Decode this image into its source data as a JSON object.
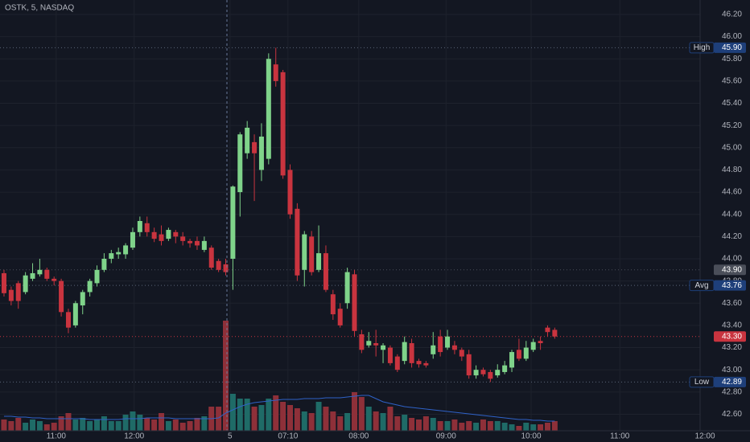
{
  "chart_data": {
    "type": "candlestick",
    "title": "OSTK, 5, NASDAQ",
    "x": [
      0,
      1,
      2,
      3,
      4,
      5,
      6,
      7,
      8,
      9,
      10,
      11,
      12,
      13,
      14,
      15,
      16,
      17,
      18,
      19,
      20,
      21,
      22,
      23,
      24,
      25,
      26,
      27,
      28,
      29,
      30,
      31,
      32,
      33,
      34,
      35,
      36,
      37,
      38,
      39,
      40,
      41,
      42,
      43,
      44,
      45,
      46,
      47,
      48,
      49,
      50,
      51,
      52,
      53,
      54,
      55,
      56,
      57,
      58,
      59,
      60,
      61,
      62,
      63,
      64,
      65,
      66,
      67,
      68,
      69,
      70,
      71,
      72,
      73,
      74,
      75,
      76,
      77
    ],
    "open": [
      43.87,
      43.72,
      43.78,
      43.7,
      43.82,
      43.86,
      43.9,
      43.82,
      43.8,
      43.52,
      43.4,
      43.58,
      43.7,
      43.78,
      43.9,
      44.0,
      44.04,
      44.04,
      44.1,
      44.24,
      44.32,
      44.24,
      44.22,
      44.18,
      44.24,
      44.2,
      44.16,
      44.16,
      44.08,
      44.1,
      43.98,
      43.95,
      44.0,
      44.6,
      44.95,
      45.05,
      44.8,
      44.9,
      45.75,
      45.68,
      44.8,
      44.45,
      43.9,
      44.2,
      43.9,
      44.05,
      43.68,
      43.55,
      43.6,
      43.86,
      43.32,
      43.22,
      43.24,
      43.18,
      43.2,
      43.12,
      43.08,
      43.24,
      43.08,
      43.06,
      43.14,
      43.3,
      43.2,
      43.22,
      43.18,
      43.14,
      42.95,
      43.0,
      42.98,
      42.95,
      42.98,
      43.02,
      43.18,
      43.1,
      43.18,
      43.26,
      43.38,
      43.36
    ],
    "high": [
      43.9,
      43.75,
      43.8,
      43.88,
      43.96,
      44.0,
      43.92,
      43.84,
      43.82,
      43.55,
      43.62,
      43.72,
      43.82,
      43.94,
      44.05,
      44.08,
      44.1,
      44.14,
      44.28,
      44.38,
      44.38,
      44.28,
      44.3,
      44.28,
      44.26,
      44.24,
      44.18,
      44.2,
      44.2,
      44.12,
      44.0,
      44.0,
      44.66,
      45.14,
      45.24,
      45.12,
      45.22,
      45.85,
      45.9,
      45.7,
      44.85,
      44.5,
      44.25,
      44.25,
      44.3,
      44.12,
      43.72,
      43.6,
      43.92,
      43.9,
      43.36,
      43.34,
      43.36,
      43.24,
      43.22,
      43.14,
      43.3,
      43.28,
      43.1,
      43.08,
      43.34,
      43.36,
      43.36,
      43.26,
      43.2,
      43.18,
      43.04,
      43.02,
      43.0,
      43.05,
      43.08,
      43.18,
      43.28,
      43.26,
      43.28,
      43.3,
      43.4,
      43.38
    ],
    "low": [
      43.66,
      43.58,
      43.55,
      43.68,
      43.8,
      43.84,
      43.8,
      43.76,
      43.48,
      43.33,
      43.38,
      43.5,
      43.66,
      43.75,
      43.88,
      43.96,
      44.0,
      44.0,
      44.08,
      44.2,
      44.2,
      44.15,
      44.12,
      44.16,
      44.14,
      44.12,
      44.1,
      44.08,
      44.06,
      43.9,
      43.88,
      43.85,
      43.72,
      44.38,
      44.9,
      44.52,
      44.7,
      44.85,
      45.55,
      44.72,
      44.36,
      43.8,
      43.75,
      43.85,
      43.88,
      43.7,
      43.45,
      43.38,
      43.55,
      43.3,
      43.15,
      43.2,
      43.12,
      43.06,
      43.04,
      42.98,
      43.05,
      43.02,
      43.02,
      43.02,
      43.1,
      43.12,
      43.18,
      43.14,
      43.08,
      42.92,
      42.92,
      42.94,
      42.89,
      42.93,
      42.96,
      42.98,
      43.08,
      43.08,
      43.16,
      43.18,
      43.3,
      43.28
    ],
    "close": [
      43.69,
      43.62,
      43.62,
      43.85,
      43.87,
      43.9,
      43.82,
      43.8,
      43.52,
      43.38,
      43.6,
      43.7,
      43.8,
      43.9,
      44.0,
      44.05,
      44.06,
      44.12,
      44.24,
      44.34,
      44.24,
      44.18,
      44.16,
      44.26,
      44.2,
      44.16,
      44.14,
      44.12,
      44.16,
      43.92,
      43.9,
      43.88,
      44.65,
      45.12,
      45.18,
      44.95,
      45.1,
      45.8,
      45.6,
      44.75,
      44.4,
      43.85,
      44.22,
      43.88,
      44.05,
      43.72,
      43.5,
      43.4,
      43.88,
      43.35,
      43.18,
      43.26,
      43.22,
      43.22,
      43.06,
      43.0,
      43.25,
      43.06,
      43.05,
      43.04,
      43.22,
      43.16,
      43.3,
      43.18,
      43.12,
      42.95,
      43.0,
      42.96,
      42.92,
      43.0,
      43.04,
      43.16,
      43.1,
      43.2,
      43.25,
      43.24,
      43.34,
      43.3
    ],
    "volume": [
      14,
      12,
      16,
      10,
      14,
      12,
      8,
      10,
      18,
      22,
      14,
      16,
      12,
      14,
      18,
      12,
      12,
      20,
      24,
      20,
      16,
      14,
      22,
      12,
      14,
      10,
      12,
      16,
      18,
      30,
      30,
      137,
      46,
      40,
      40,
      30,
      32,
      40,
      44,
      36,
      32,
      28,
      24,
      22,
      36,
      30,
      24,
      18,
      22,
      48,
      42,
      30,
      24,
      22,
      30,
      18,
      20,
      16,
      14,
      18,
      16,
      12,
      12,
      14,
      10,
      12,
      10,
      14,
      12,
      12,
      10,
      8,
      6,
      10,
      8,
      8,
      10,
      12
    ],
    "volume_ma": [
      18,
      18,
      17,
      17,
      16,
      16,
      15,
      15,
      15,
      15,
      15,
      15,
      14,
      14,
      14,
      14,
      14,
      15,
      15,
      15,
      16,
      16,
      16,
      16,
      15,
      15,
      15,
      15,
      15,
      15,
      16,
      22,
      26,
      30,
      33,
      35,
      36,
      37,
      38,
      39,
      39,
      39,
      40,
      40,
      40,
      41,
      41,
      41,
      42,
      43,
      44,
      44,
      40,
      36,
      34,
      32,
      30,
      29,
      28,
      27,
      26,
      25,
      24,
      23,
      22,
      21,
      20,
      19,
      18,
      17,
      16,
      15,
      14,
      14,
      13,
      13,
      12,
      12
    ],
    "up_color": "#7fd38a",
    "down_color": "#c9343f",
    "volume_up_color": "#1f6b67",
    "volume_down_color": "#8e3039",
    "volume_ma_color": "#2f62c8",
    "xlim": [
      -0.56,
      104.3
    ],
    "xticks": [
      {
        "value": 7.3,
        "label": "11:00"
      },
      {
        "value": 18.2,
        "label": "12:00"
      },
      {
        "value": 31.6,
        "label": "5"
      },
      {
        "value": 39.7,
        "label": "07:10"
      },
      {
        "value": 49.6,
        "label": "08:00"
      },
      {
        "value": 61.8,
        "label": "09:00"
      },
      {
        "value": 73.7,
        "label": "10:00"
      },
      {
        "value": 86.1,
        "label": "11:00"
      },
      {
        "value": 98,
        "label": "12:00"
      }
    ],
    "ylim": [
      42.35,
      46.33
    ],
    "yticks": [
      {
        "value": 42.6,
        "label": "42.60"
      },
      {
        "value": 42.8,
        "label": "42.80"
      },
      {
        "value": 43,
        "label": "43.00"
      },
      {
        "value": 43.2,
        "label": "43.20"
      },
      {
        "value": 43.4,
        "label": "43.40"
      },
      {
        "value": 43.6,
        "label": "43.60"
      },
      {
        "value": 43.8,
        "label": "43.80"
      },
      {
        "value": 44,
        "label": "44.00"
      },
      {
        "value": 44.2,
        "label": "44.20"
      },
      {
        "value": 44.4,
        "label": "44.40"
      },
      {
        "value": 44.6,
        "label": "44.60"
      },
      {
        "value": 44.8,
        "label": "44.80"
      },
      {
        "value": 45,
        "label": "45.00"
      },
      {
        "value": 45.2,
        "label": "45.20"
      },
      {
        "value": 45.4,
        "label": "45.40"
      },
      {
        "value": 45.6,
        "label": "45.60"
      },
      {
        "value": 45.8,
        "label": "45.80"
      },
      {
        "value": 46,
        "label": "46.00"
      },
      {
        "value": 46.2,
        "label": "46.20"
      }
    ],
    "grid": true,
    "price_lines": [
      {
        "name": "High",
        "value": 45.9,
        "label": "45.90",
        "color": "#1e3f7a"
      },
      {
        "value": 43.9,
        "label": "43.90",
        "color": "#4a4e59"
      },
      {
        "name": "Avg",
        "value": 43.76,
        "label": "43.76",
        "color": "#1e3f7a"
      },
      {
        "value": 43.3,
        "label": "43.30",
        "color": "#c9343f"
      },
      {
        "name": "Low",
        "value": 42.89,
        "label": "42.89",
        "color": "#1e3f7a"
      }
    ]
  }
}
